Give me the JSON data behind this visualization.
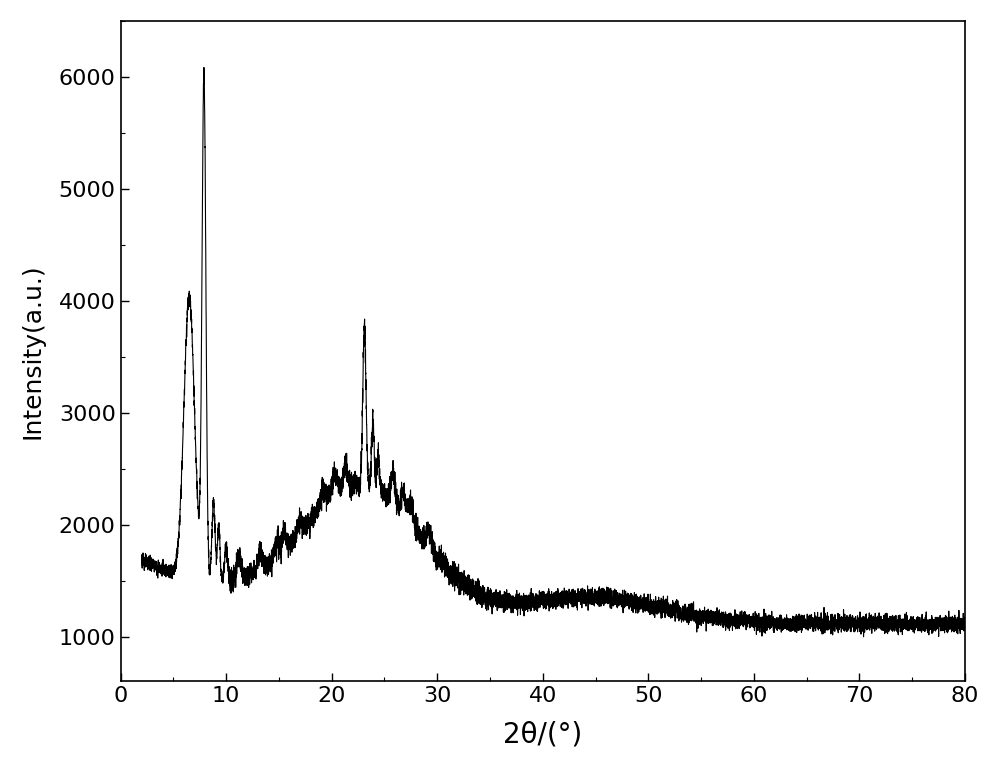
{
  "xlim": [
    0,
    80
  ],
  "ylim": [
    600,
    6500
  ],
  "xticks": [
    0,
    10,
    20,
    30,
    40,
    50,
    60,
    70,
    80
  ],
  "yticks": [
    1000,
    2000,
    3000,
    4000,
    5000,
    6000
  ],
  "xlabel": "2θ/(°)",
  "ylabel": "Intensity(a.u.)",
  "line_color": "#000000",
  "line_width": 0.8,
  "background_color": "#ffffff",
  "xlabel_fontsize": 20,
  "ylabel_fontsize": 18,
  "tick_fontsize": 16,
  "ylabel_spacing": "Intensity(a.u.)"
}
